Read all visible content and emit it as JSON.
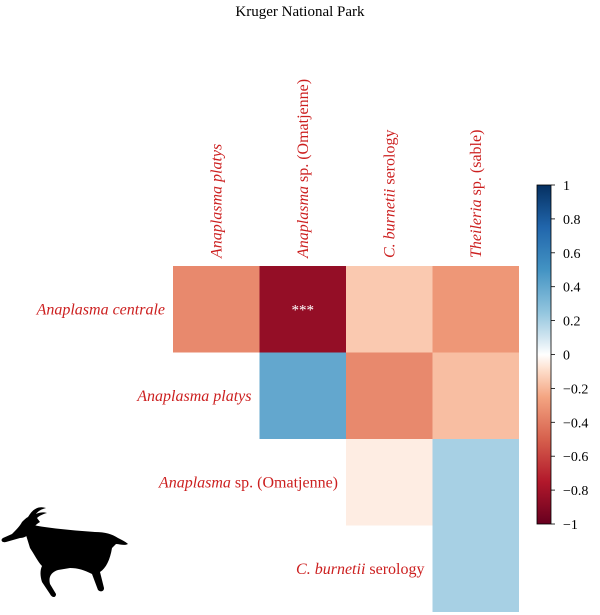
{
  "chart_data": {
    "type": "heatmap",
    "title": "Kruger National Park",
    "columns": [
      {
        "italic": "Anaplasma platys",
        "plain": ""
      },
      {
        "italic": "Anaplasma",
        "plain": " sp. (Omatjenne)"
      },
      {
        "italic": "C. burnetii",
        "plain": " serology"
      },
      {
        "italic": "Theileria",
        "plain": " sp. (sable)"
      }
    ],
    "rows": [
      {
        "italic": "Anaplasma centrale",
        "plain": ""
      },
      {
        "italic": "Anaplasma platys",
        "plain": ""
      },
      {
        "italic": "Anaplasma",
        "plain": " sp. (Omatjenne)"
      },
      {
        "italic": "C. burnetii",
        "plain": " serology"
      }
    ],
    "values": [
      [
        -0.35,
        -0.85,
        -0.15,
        -0.3
      ],
      [
        null,
        0.4,
        -0.35,
        -0.18
      ],
      [
        null,
        null,
        -0.05,
        0.2
      ],
      [
        null,
        null,
        null,
        0.2
      ]
    ],
    "annotations": [
      {
        "row": 0,
        "col": 1,
        "text": "***"
      }
    ],
    "colorbar": {
      "min": -1,
      "max": 1,
      "ticks": [
        "1",
        "0.8",
        "0.6",
        "0.4",
        "0.2",
        "0",
        "−0.2",
        "−0.4",
        "−0.6",
        "−0.8",
        "−1"
      ]
    },
    "colors": {
      "negative_end": "#67001f",
      "mid": "#ffffff",
      "positive_end": "#053061",
      "label_color": "#cc1f1f",
      "title_color": "#000000"
    }
  },
  "icons": {
    "animal": "antelope-silhouette-icon"
  }
}
